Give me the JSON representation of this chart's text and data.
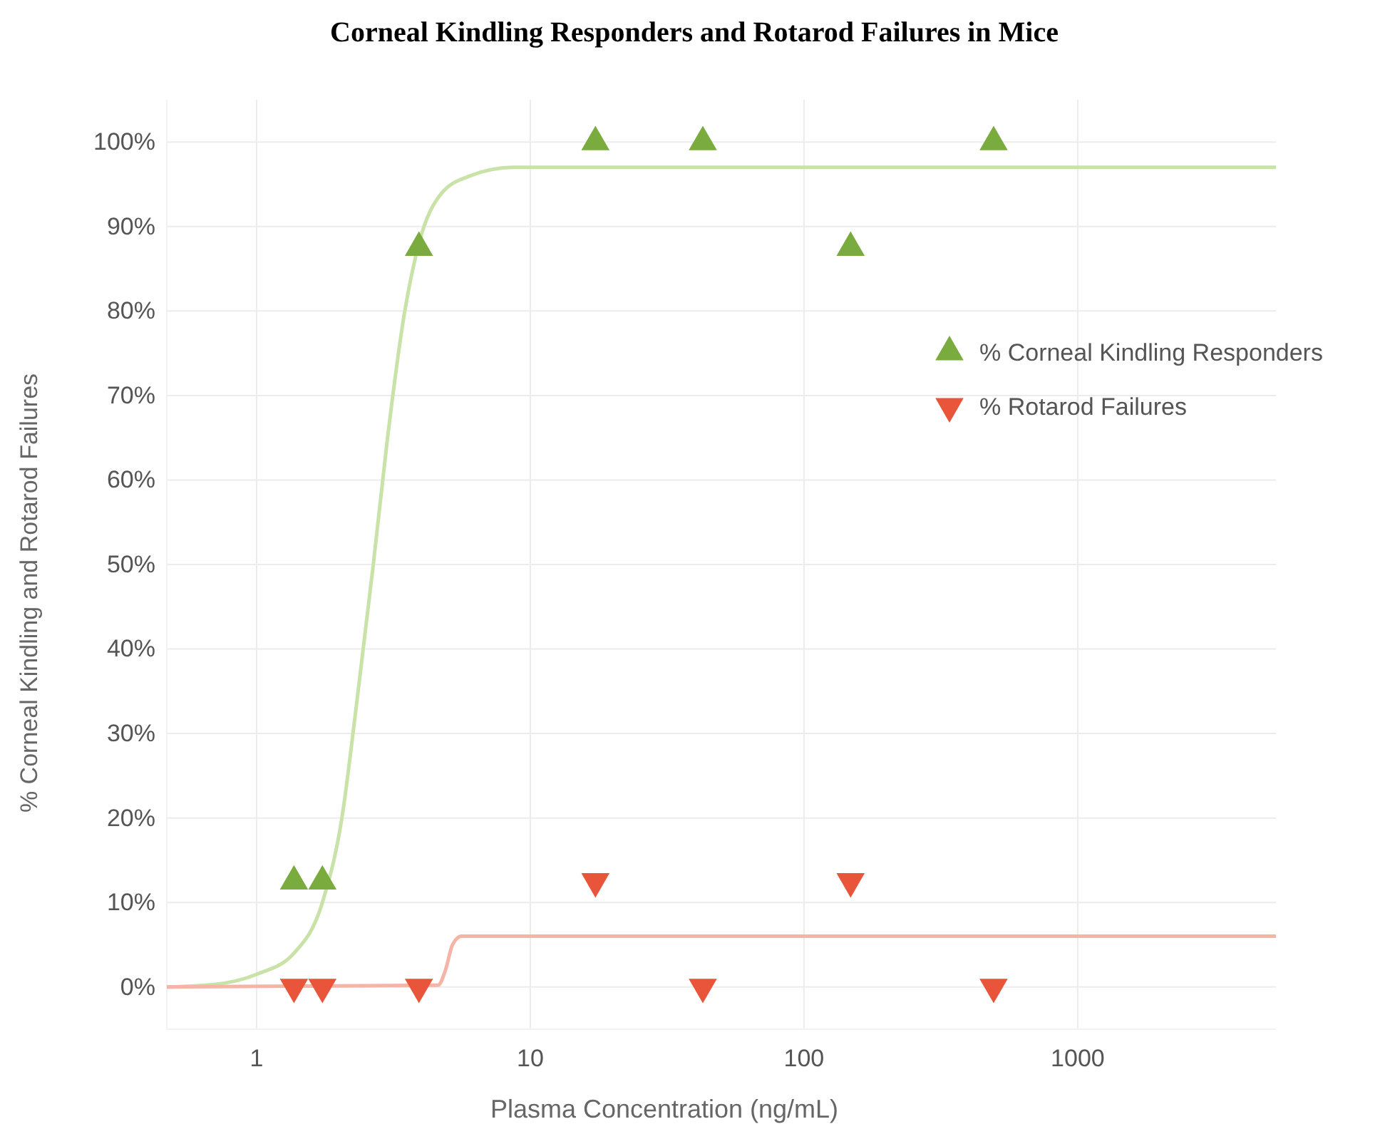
{
  "chart_data": {
    "type": "scatter",
    "title": "Corneal Kindling Responders and Rotarod Failures in Mice",
    "xlabel": "Plasma Concentration (ng/mL)",
    "ylabel": "% Corneal Kindling and Rotarod Failures",
    "log": "x",
    "xlim": [
      0.47,
      5300
    ],
    "xticks": [
      1,
      10,
      100,
      1000
    ],
    "ylim": [
      -5,
      105
    ],
    "yticks": [
      {
        "value": 0,
        "label": "0%"
      },
      {
        "value": 10,
        "label": "10%"
      },
      {
        "value": 20,
        "label": "20%"
      },
      {
        "value": 30,
        "label": "30%"
      },
      {
        "value": 40,
        "label": "40%"
      },
      {
        "value": 50,
        "label": "50%"
      },
      {
        "value": 60,
        "label": "60%"
      },
      {
        "value": 70,
        "label": "70%"
      },
      {
        "value": 80,
        "label": "80%"
      },
      {
        "value": 90,
        "label": "90%"
      },
      {
        "value": 100,
        "label": "100%"
      }
    ],
    "grid": true,
    "legend": "top right",
    "series": [
      {
        "type": "line",
        "color": "#c8e2a8",
        "marker": "none",
        "x": [
          0.47,
          0.7,
          1,
          1.37,
          1.74,
          2.05,
          2.31,
          2.67,
          3.01,
          3.48,
          3.92,
          4.76,
          6.04,
          8.66,
          5300
        ],
        "values": [
          0,
          0.3,
          1.5,
          4,
          10,
          20,
          33,
          50,
          65,
          80,
          88,
          94,
          96,
          97,
          97
        ]
      },
      {
        "type": "line",
        "color": "#f4b4a6",
        "marker": "none",
        "x": [
          0.47,
          4.6,
          4.9,
          5.2,
          5.6,
          5300
        ],
        "values": [
          0,
          0.2,
          2,
          5,
          6,
          6
        ]
      },
      {
        "name": "% Corneal Kindling Responders",
        "color": "#7aab3f",
        "marker": "triangle",
        "x": [
          1.37,
          1.74,
          3.92,
          17.3,
          42.7,
          148,
          493
        ],
        "values": [
          12.5,
          12.5,
          87.5,
          100,
          100,
          87.5,
          100
        ]
      },
      {
        "name": "% Rotarod Failures",
        "color": "#e8553a",
        "marker": "triangle-down",
        "x": [
          1.37,
          1.74,
          3.92,
          17.3,
          42.7,
          148,
          493
        ],
        "values": [
          0,
          0,
          0,
          12.5,
          0,
          12.5,
          0
        ]
      }
    ]
  }
}
